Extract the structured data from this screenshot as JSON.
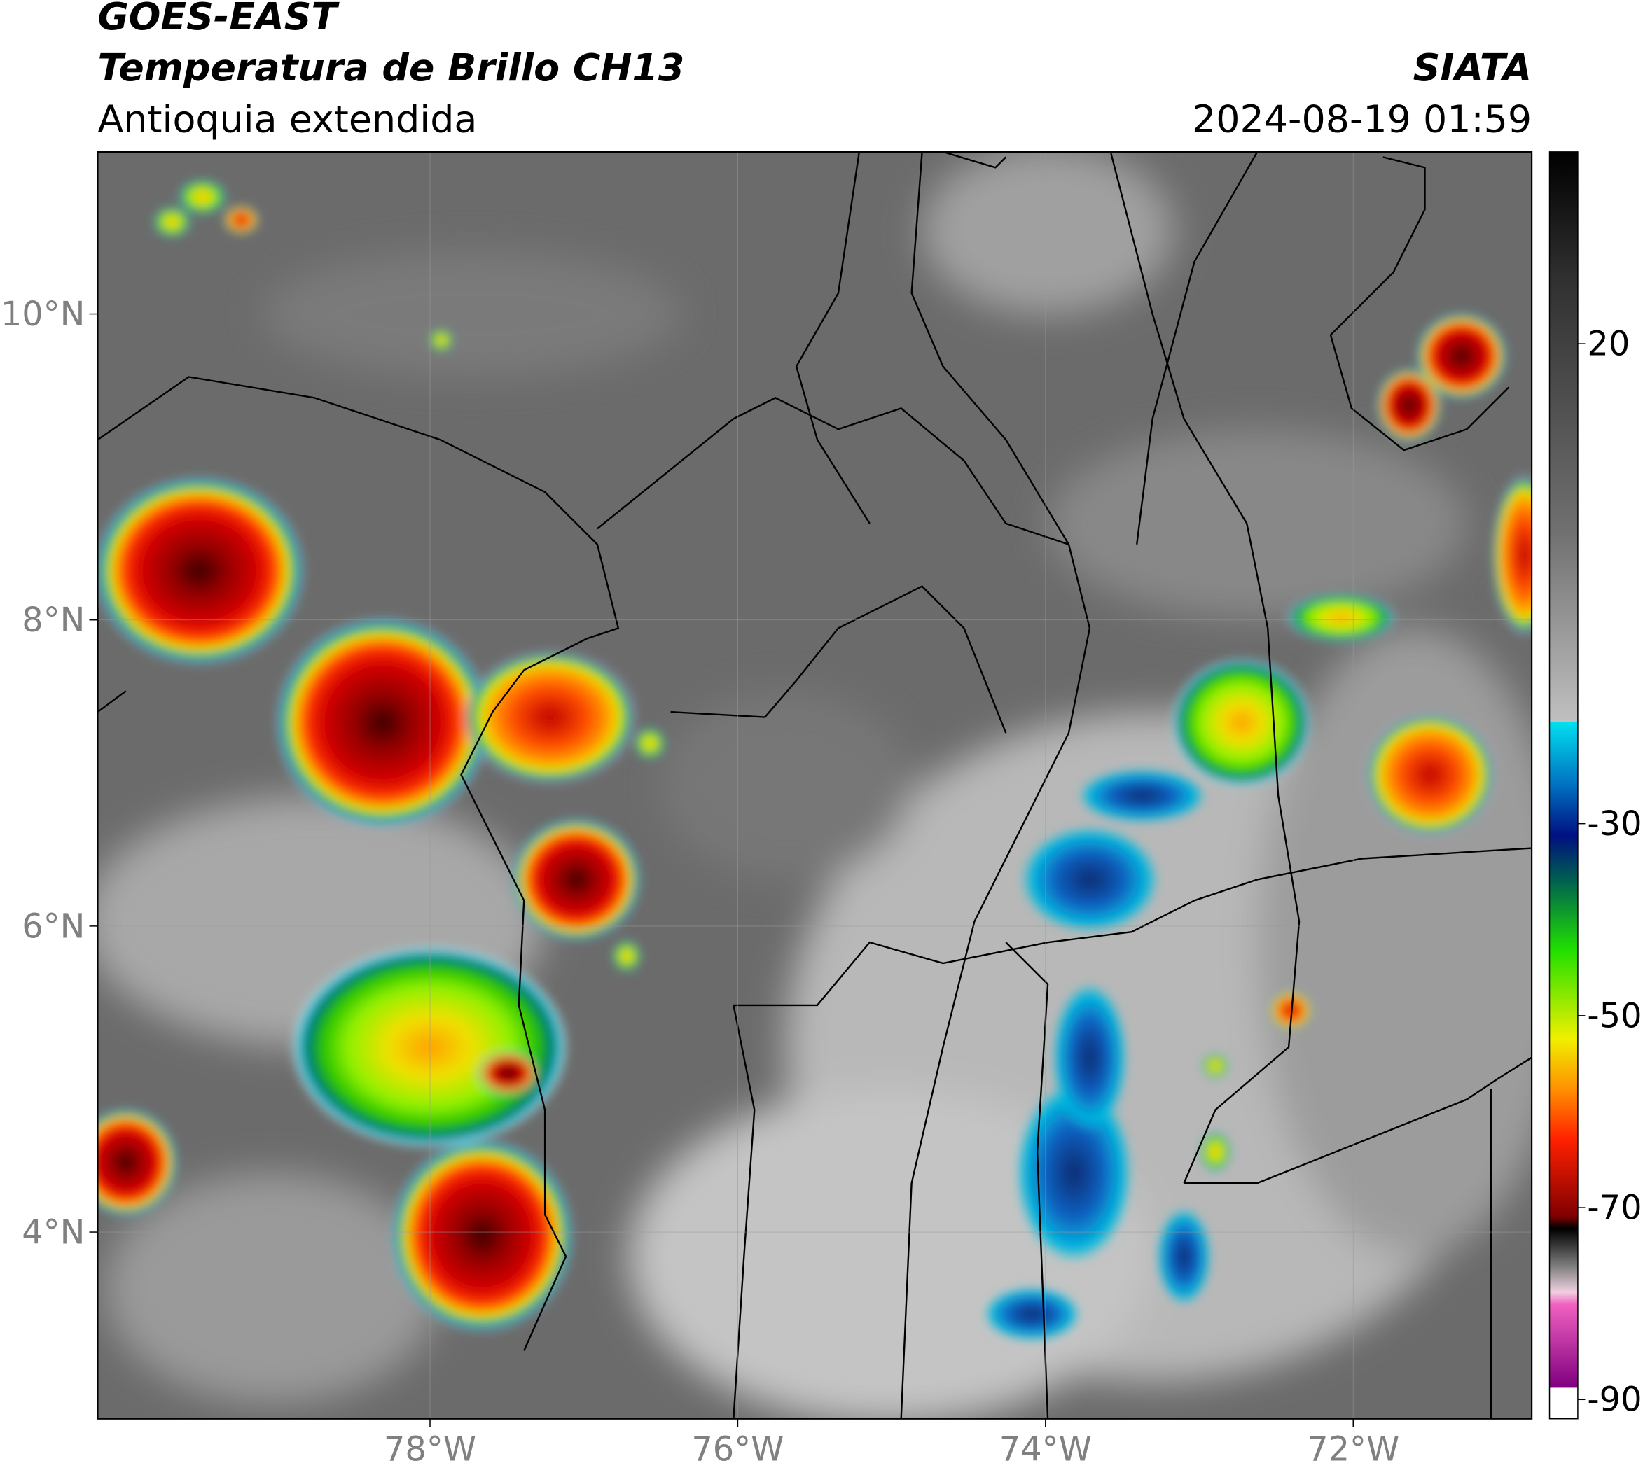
{
  "map": {
    "title": "GOES-EAST",
    "subtitle": "Temperatura de Brillo CH13",
    "region": "Antioquia extendida",
    "source": "SIATA",
    "timestamp": "2024-08-19 01:59",
    "xlim": [
      -80.16,
      -70.84
    ],
    "ylim": [
      2.78,
      11.06
    ],
    "xticks": [
      {
        "value": -78,
        "label": "78°W"
      },
      {
        "value": -76,
        "label": "76°W"
      },
      {
        "value": -74,
        "label": "74°W"
      },
      {
        "value": -72,
        "label": "72°W"
      }
    ],
    "yticks": [
      {
        "value": 4,
        "label": "4°N"
      },
      {
        "value": 6,
        "label": "6°N"
      },
      {
        "value": 8,
        "label": "8°N"
      },
      {
        "value": 10,
        "label": "10°N"
      }
    ],
    "grid": true,
    "colorbar": {
      "clim": [
        -92,
        40
      ],
      "ticks": [
        20,
        -30,
        -50,
        -70,
        -90
      ]
    }
  }
}
